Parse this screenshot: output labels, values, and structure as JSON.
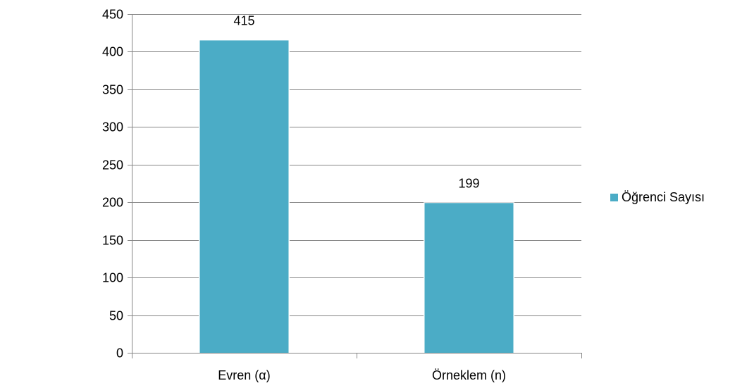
{
  "chart_data": {
    "type": "bar",
    "title": "",
    "xlabel": "",
    "ylabel": "",
    "categories": [
      "Evren (α)",
      "Örneklem (n)"
    ],
    "series": [
      {
        "name": "Öğrenci Sayısı",
        "values": [
          415,
          199
        ]
      }
    ],
    "ylim": [
      0,
      450
    ],
    "yticks": [
      0,
      50,
      100,
      150,
      200,
      250,
      300,
      350,
      400,
      450
    ],
    "data_labels": [
      "415",
      "199"
    ],
    "grid": true,
    "legend_position": "right"
  },
  "colors": {
    "bar": "#4BACC6",
    "gridline": "#868686",
    "axis": "#868686",
    "text": "#000000"
  }
}
